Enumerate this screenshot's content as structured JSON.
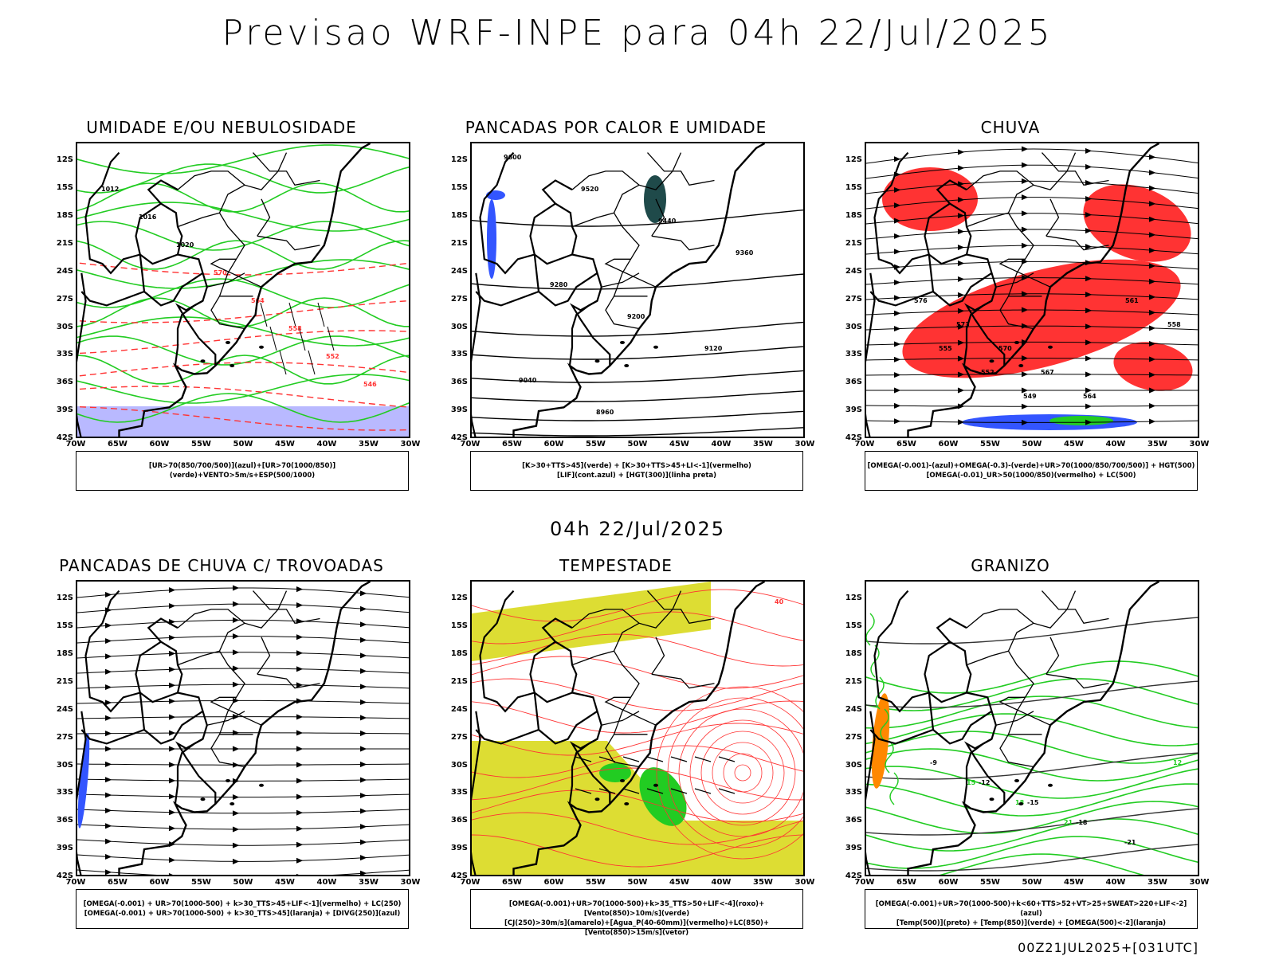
{
  "title": "Previsao WRF-INPE  para 04h 22/Jul/2025",
  "middle_title": "04h 22/Jul/2025",
  "footer": "00Z21JUL2025+[031UTC]",
  "lat_labels": [
    "12S",
    "15S",
    "18S",
    "21S",
    "24S",
    "27S",
    "30S",
    "33S",
    "36S",
    "39S",
    "42S"
  ],
  "lon_labels": [
    "70W",
    "65W",
    "60W",
    "55W",
    "50W",
    "45W",
    "40W",
    "35W",
    "30W"
  ],
  "panels": [
    {
      "title": "UMIDADE E/OU NEBULOSIDADE",
      "legend": [
        "[UR>70(850/700/500)](azul)+[UR>70(1000/850)](verde)+VENTO>5m/s+ESP(500/1000)"
      ],
      "contour_labels": [
        "1012",
        "1016",
        "1020",
        "570",
        "564",
        "558",
        "552",
        "546"
      ]
    },
    {
      "title": "PANCADAS POR CALOR E UMIDADE",
      "legend": [
        "[K>30+TTS>45](verde) + [K>30+TTS>45+LI<-1](vermelho)",
        "[LIF](cont.azul) + [HGT(300)](linha preta)"
      ],
      "contour_labels": [
        "9600",
        "9520",
        "9440",
        "9360",
        "9280",
        "9200",
        "9120",
        "9040",
        "8960"
      ]
    },
    {
      "title": "CHUVA",
      "legend": [
        "[OMEGA(-0.001)-(azul)+OMEGA(-0.3)-(verde)+UR>70(1000/850/700/500)] + HGT(500)",
        "[OMEGA(-0.01)_UR>50(1000/850)(vermelho) + LC(500)"
      ],
      "contour_labels": [
        "576",
        "573",
        "570",
        "567",
        "564",
        "561",
        "558",
        "555",
        "552",
        "549"
      ]
    },
    {
      "title": "PANCADAS DE CHUVA C/ TROVOADAS",
      "legend": [
        "[OMEGA(-0.001) + UR>70(1000-500) + k>30_TTS>45+LIF<-1](vermelho) + LC(250)",
        "[OMEGA(-0.001) + UR>70(1000-500) + k>30_TTS>45](laranja) + [DIVG(250)](azul)"
      ],
      "contour_labels": []
    },
    {
      "title": "TEMPESTADE",
      "legend": [
        "[OMEGA(-0.001)+UR>70(1000-500)+k>35_TTS>50+LIF<-4](roxo)+[Vento(850)>10m/s](verde)",
        "[CJ(250)>30m/s](amarelo)+[Agua_P(40-60mm)](vermelho)+LC(850)+[Vento(850)>15m/s](vetor)"
      ],
      "contour_labels": [
        "40"
      ]
    },
    {
      "title": "GRANIZO",
      "legend": [
        "[OMEGA(-0.001)+UR>70(1000-500)+k<60+TTS>52+VT>25+SWEAT>220+LIF<-2](azul)",
        "[Temp(500)](preto) + [Temp(850)](verde) + [OMEGA(500)<-2](laranja)"
      ],
      "contour_labels": [
        "-9",
        "-12",
        "-15",
        "-18",
        "-21",
        "12",
        "15",
        "18",
        "21"
      ]
    }
  ],
  "colors": {
    "green": "#22cc22",
    "red": "#ff3333",
    "blue": "#3355ff",
    "yellow": "#dddd33",
    "violet": "#a8a8ff",
    "teal": "#1f4a4a",
    "orange": "#ff8800"
  }
}
